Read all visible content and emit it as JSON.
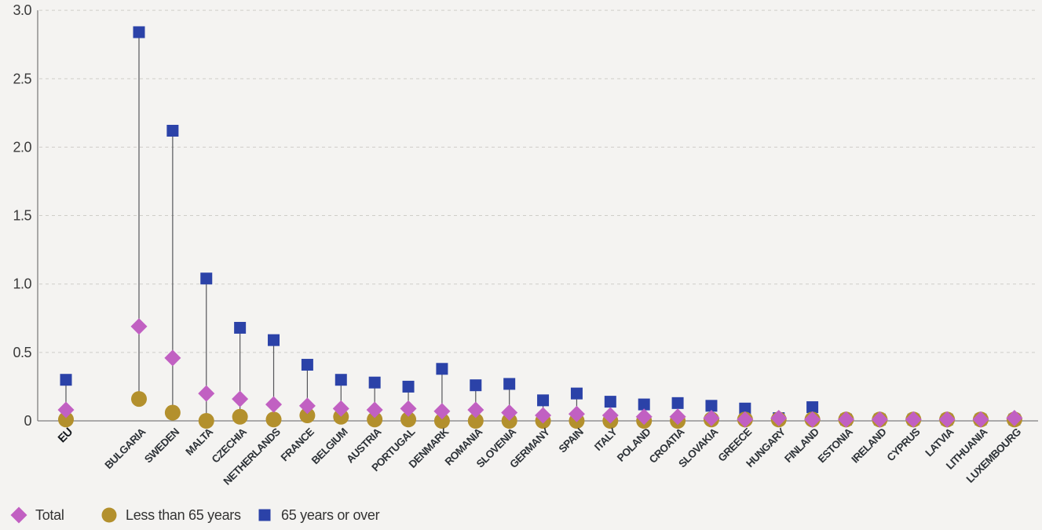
{
  "page": {
    "background": "#f4f3f1"
  },
  "chart_data": {
    "type": "scatter",
    "title": "",
    "xlabel": "",
    "ylabel": "",
    "ylim": [
      0,
      3.0
    ],
    "yticks": [
      "3.0",
      "2.5",
      "2.0",
      "1.5",
      "1.0",
      "0.5",
      "0"
    ],
    "ytick_values": [
      3.0,
      2.5,
      2.0,
      1.5,
      1.0,
      0.5,
      0
    ],
    "grid": "horizontal-dashed",
    "legend_position": "bottom-left",
    "categories": [
      "EU",
      "BULGARIA",
      "SWEDEN",
      "MALTA",
      "CZECHIA",
      "NETHERLANDS",
      "FRANCE",
      "BELGIUM",
      "AUSTRIA",
      "PORTUGAL",
      "DENMARK",
      "ROMANIA",
      "SLOVENIA",
      "GERMANY",
      "SPAIN",
      "ITALY",
      "POLAND",
      "CROATIA",
      "SLOVAKIA",
      "GREECE",
      "HUNGARY",
      "FINLAND",
      "ESTONIA",
      "IRELAND",
      "CYPRUS",
      "LATVIA",
      "LITHUANIA",
      "LUXEMBOURG"
    ],
    "series": [
      {
        "name": "Total",
        "marker": "diamond",
        "color": "#c160c2",
        "values": [
          0.08,
          0.69,
          0.46,
          0.2,
          0.16,
          0.12,
          0.11,
          0.09,
          0.08,
          0.09,
          0.07,
          0.08,
          0.06,
          0.04,
          0.05,
          0.04,
          0.03,
          0.03,
          0.02,
          0.01,
          0.02,
          0.01,
          0.01,
          0.01,
          0.01,
          0.01,
          0.01,
          0.02
        ]
      },
      {
        "name": "Less than 65 years",
        "marker": "circle",
        "color": "#b3902d",
        "values": [
          0.01,
          0.16,
          0.06,
          0.0,
          0.03,
          0.01,
          0.04,
          0.03,
          0.01,
          0.01,
          0.0,
          0.0,
          0.0,
          0.0,
          0.0,
          0.0,
          0.0,
          0.0,
          0.01,
          0.01,
          0.01,
          0.01,
          0.01,
          0.01,
          0.01,
          0.01,
          0.01,
          0.01
        ]
      },
      {
        "name": "65 years or over",
        "marker": "square",
        "color": "#2b42a8",
        "values": [
          0.3,
          2.84,
          2.12,
          1.04,
          0.68,
          0.59,
          0.41,
          0.3,
          0.28,
          0.25,
          0.38,
          0.26,
          0.27,
          0.15,
          0.2,
          0.14,
          0.12,
          0.13,
          0.11,
          0.09,
          0.02,
          0.1,
          0.01,
          0.01,
          0.01,
          0.01,
          0.01,
          0.01
        ]
      }
    ],
    "colors": {
      "stem": "#55565a",
      "axis": "#7f7f7f",
      "grid": "#cfcec9",
      "tick_label": "#3a3a3a",
      "category_label": "#2d3237"
    }
  }
}
